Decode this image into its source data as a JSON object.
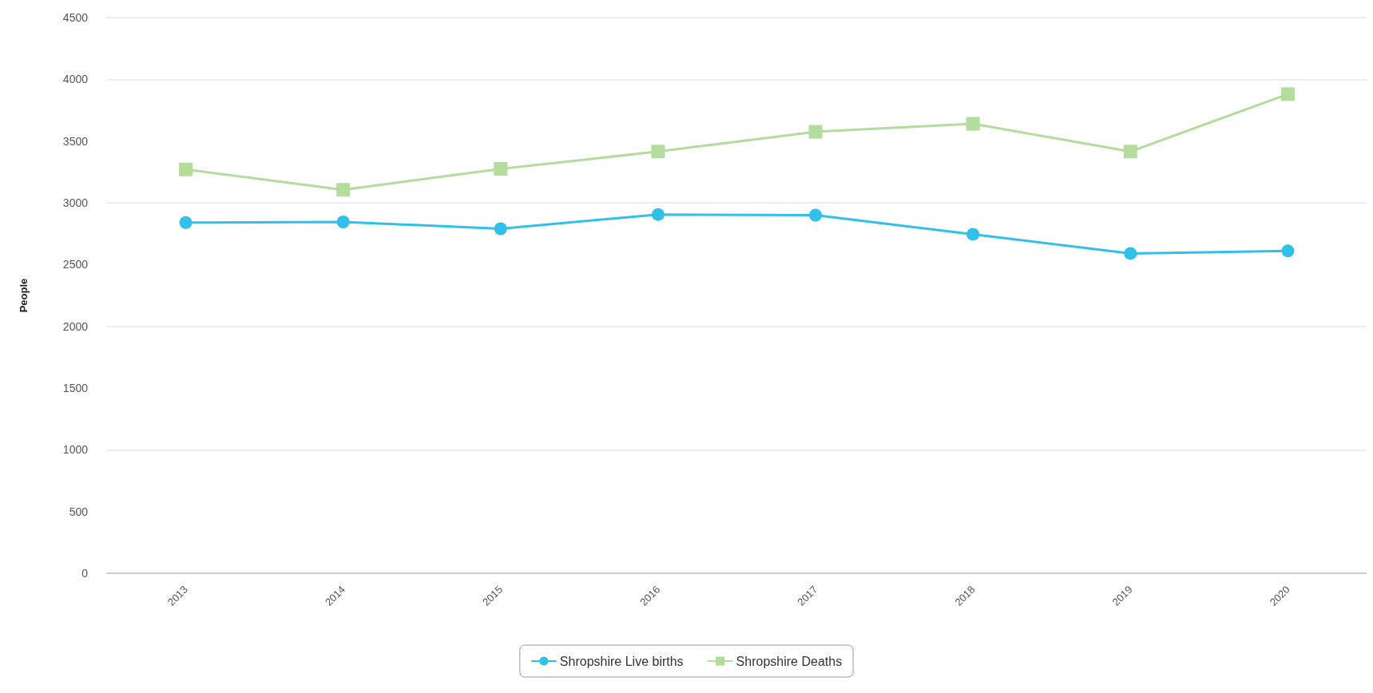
{
  "chart_data": {
    "type": "line",
    "ylabel": "People",
    "categories": [
      "2013",
      "2014",
      "2015",
      "2016",
      "2017",
      "2018",
      "2019",
      "2020"
    ],
    "series": [
      {
        "name": "Shropshire Live births",
        "color": "#30c0eb",
        "marker": "circle",
        "values": [
          2840,
          2845,
          2790,
          2905,
          2900,
          2745,
          2590,
          2610
        ]
      },
      {
        "name": "Shropshire Deaths",
        "color": "#b4dc9c",
        "marker": "square",
        "values": [
          3270,
          3105,
          3275,
          3415,
          3575,
          3640,
          3415,
          3880
        ]
      }
    ],
    "ylim": [
      0,
      4500
    ],
    "yticks": [
      0,
      500,
      1000,
      1500,
      2000,
      2500,
      3000,
      3500,
      4000,
      4500
    ],
    "grid": "y",
    "legend": "bottom",
    "line_style": "solid"
  }
}
